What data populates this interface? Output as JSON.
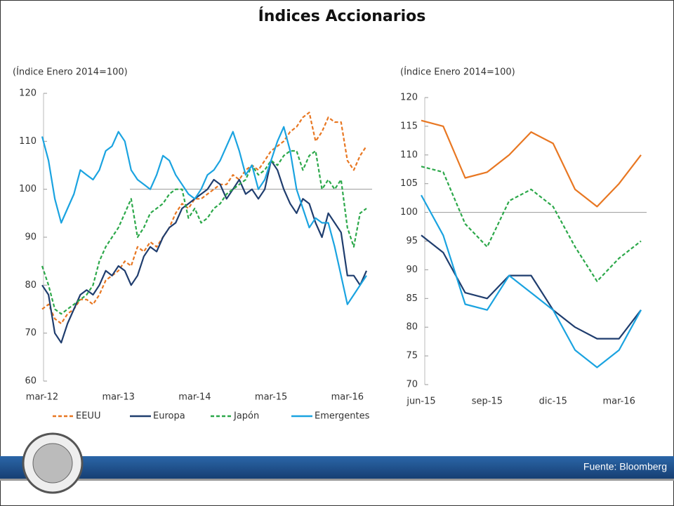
{
  "title": "Índices Accionarios",
  "source": "Fuente: Bloomberg",
  "chart_data": [
    {
      "type": "line",
      "ylabel": "(Índice Enero 2014=100)",
      "x": [
        "2012-03",
        "2012-04",
        "2012-05",
        "2012-06",
        "2012-07",
        "2012-08",
        "2012-09",
        "2012-10",
        "2012-11",
        "2012-12",
        "2013-01",
        "2013-02",
        "2013-03",
        "2013-04",
        "2013-05",
        "2013-06",
        "2013-07",
        "2013-08",
        "2013-09",
        "2013-10",
        "2013-11",
        "2013-12",
        "2014-01",
        "2014-02",
        "2014-03",
        "2014-04",
        "2014-05",
        "2014-06",
        "2014-07",
        "2014-08",
        "2014-09",
        "2014-10",
        "2014-11",
        "2014-12",
        "2015-01",
        "2015-02",
        "2015-03",
        "2015-04",
        "2015-05",
        "2015-06",
        "2015-07",
        "2015-08",
        "2015-09",
        "2015-10",
        "2015-11",
        "2015-12",
        "2016-01",
        "2016-02",
        "2016-03",
        "2016-04",
        "2016-05",
        "2016-06"
      ],
      "xlim": [
        "2012-03",
        "2016-06"
      ],
      "xticks": [
        {
          "value": "2012-03",
          "label": "mar-12"
        },
        {
          "value": "2013-03",
          "label": "mar-13"
        },
        {
          "value": "2014-03",
          "label": "mar-14"
        },
        {
          "value": "2015-03",
          "label": "mar-15"
        },
        {
          "value": "2016-03",
          "label": "mar-16"
        }
      ],
      "ylim": [
        60,
        120
      ],
      "yticks": [
        60,
        70,
        80,
        90,
        100,
        110,
        120
      ],
      "hline": 100,
      "legend": "bottom",
      "series": [
        {
          "name": "EEUU",
          "color": "#e87722",
          "dash": true,
          "values": [
            75,
            76,
            73,
            72,
            74,
            75,
            77,
            77,
            76,
            78,
            81,
            82,
            83,
            85,
            84,
            88,
            87,
            89,
            88,
            90,
            92,
            95,
            97,
            96,
            98,
            98,
            99,
            100,
            101,
            101,
            103,
            102,
            104,
            105,
            104,
            106,
            108,
            109,
            110,
            112,
            113,
            115,
            116,
            110,
            112,
            115,
            114,
            114,
            106,
            104,
            107,
            109
          ]
        },
        {
          "name": "Europa",
          "color": "#1f3d6e",
          "dash": false,
          "values": [
            80,
            78,
            70,
            68,
            72,
            75,
            78,
            79,
            78,
            80,
            83,
            82,
            84,
            83,
            80,
            82,
            86,
            88,
            87,
            90,
            92,
            93,
            96,
            97,
            98,
            99,
            100,
            102,
            101,
            98,
            100,
            102,
            99,
            100,
            98,
            100,
            106,
            104,
            100,
            97,
            95,
            98,
            97,
            93,
            90,
            95,
            93,
            91,
            82,
            82,
            80,
            83
          ]
        },
        {
          "name": "Japón",
          "color": "#2ca84a",
          "dash": true,
          "values": [
            84,
            80,
            75,
            74,
            75,
            76,
            77,
            78,
            80,
            85,
            88,
            90,
            92,
            95,
            98,
            90,
            92,
            95,
            96,
            97,
            99,
            100,
            100,
            94,
            96,
            93,
            94,
            96,
            97,
            99,
            100,
            101,
            102,
            105,
            103,
            104,
            106,
            105,
            107,
            108,
            108,
            104,
            107,
            108,
            100,
            102,
            100,
            102,
            92,
            88,
            95,
            96
          ]
        },
        {
          "name": "Emergentes",
          "color": "#1aa3e0",
          "dash": false,
          "values": [
            111,
            106,
            98,
            93,
            96,
            99,
            104,
            103,
            102,
            104,
            108,
            109,
            112,
            110,
            104,
            102,
            101,
            100,
            103,
            107,
            106,
            103,
            101,
            99,
            98,
            100,
            103,
            104,
            106,
            109,
            112,
            108,
            103,
            105,
            100,
            102,
            106,
            110,
            113,
            108,
            100,
            96,
            92,
            94,
            93,
            93,
            88,
            82,
            76,
            78,
            80,
            82
          ]
        }
      ]
    },
    {
      "type": "line",
      "ylabel": "(Índice Enero 2014=100)",
      "x": [
        "2015-06",
        "2015-07",
        "2015-08",
        "2015-09",
        "2015-10",
        "2015-11",
        "2015-12",
        "2016-01",
        "2016-02",
        "2016-03",
        "2016-04"
      ],
      "xlim": [
        "2015-06",
        "2016-04"
      ],
      "xticks": [
        {
          "value": "2015-06",
          "label": "jun-15"
        },
        {
          "value": "2015-09",
          "label": "sep-15"
        },
        {
          "value": "2015-12",
          "label": "dic-15"
        },
        {
          "value": "2016-03",
          "label": "mar-16"
        }
      ],
      "ylim": [
        70,
        120
      ],
      "yticks": [
        70,
        75,
        80,
        85,
        90,
        95,
        100,
        105,
        110,
        115,
        120
      ],
      "hline": 100,
      "series": [
        {
          "color": "#e87722",
          "dash": false,
          "values": [
            116,
            115,
            106,
            107,
            110,
            114,
            112,
            104,
            101,
            105,
            110
          ]
        },
        {
          "color": "#1f3d6e",
          "dash": false,
          "values": [
            96,
            93,
            86,
            85,
            89,
            89,
            83,
            80,
            78,
            78,
            83
          ]
        },
        {
          "color": "#2ca84a",
          "dash": true,
          "values": [
            108,
            107,
            98,
            94,
            102,
            104,
            101,
            94,
            88,
            92,
            95
          ]
        },
        {
          "color": "#1aa3e0",
          "dash": false,
          "values": [
            103,
            96,
            84,
            83,
            89,
            86,
            83,
            76,
            73,
            76,
            83
          ]
        }
      ]
    }
  ]
}
